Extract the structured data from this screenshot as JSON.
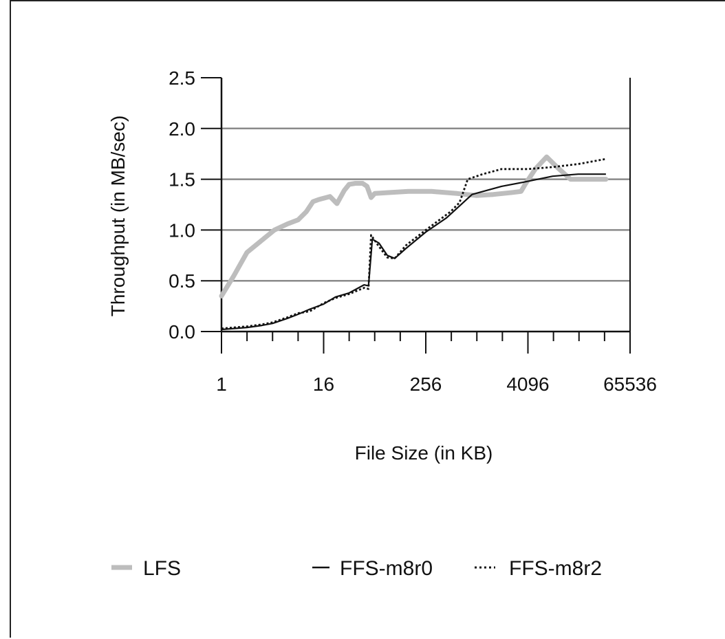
{
  "chart_data": {
    "type": "line",
    "xlabel": "File Size (in KB)",
    "ylabel": "Throughput (in MB/sec)",
    "x_scale": "log2",
    "xlim": [
      1,
      65536
    ],
    "ylim": [
      0,
      2.5
    ],
    "x_ticks": [
      1,
      16,
      256,
      4096,
      65536
    ],
    "x_tick_labels": [
      "1",
      "16",
      "256",
      "4096",
      "65536"
    ],
    "y_ticks": [
      0.0,
      0.5,
      1.0,
      1.5,
      2.0,
      2.5
    ],
    "y_tick_labels": [
      "0.0",
      "0.5",
      "1.0",
      "1.5",
      "2.0",
      "2.5"
    ],
    "grid": "horizontal",
    "legend_position": "bottom",
    "series": [
      {
        "name": "LFS",
        "color": "#bdbdbd",
        "style": "thick",
        "points": [
          [
            1,
            0.35
          ],
          [
            1.4,
            0.55
          ],
          [
            2,
            0.78
          ],
          [
            3,
            0.9
          ],
          [
            4.2,
            1.0
          ],
          [
            6,
            1.06
          ],
          [
            8,
            1.1
          ],
          [
            10,
            1.18
          ],
          [
            12,
            1.28
          ],
          [
            14,
            1.3
          ],
          [
            19,
            1.33
          ],
          [
            23,
            1.26
          ],
          [
            28,
            1.39
          ],
          [
            32,
            1.45
          ],
          [
            38,
            1.46
          ],
          [
            46,
            1.46
          ],
          [
            52,
            1.43
          ],
          [
            58,
            1.32
          ],
          [
            64,
            1.36
          ],
          [
            100,
            1.37
          ],
          [
            160,
            1.38
          ],
          [
            300,
            1.38
          ],
          [
            600,
            1.36
          ],
          [
            1000,
            1.34
          ],
          [
            1600,
            1.35
          ],
          [
            2700,
            1.37
          ],
          [
            3400,
            1.38
          ],
          [
            3800,
            1.45
          ],
          [
            5000,
            1.6
          ],
          [
            6800,
            1.72
          ],
          [
            9000,
            1.62
          ],
          [
            13000,
            1.5
          ],
          [
            20000,
            1.5
          ],
          [
            34000,
            1.5
          ]
        ]
      },
      {
        "name": "FFS-m8r0",
        "color": "#111111",
        "style": "solid",
        "points": [
          [
            1,
            0.02
          ],
          [
            2,
            0.04
          ],
          [
            3,
            0.06
          ],
          [
            4,
            0.08
          ],
          [
            6,
            0.13
          ],
          [
            8,
            0.17
          ],
          [
            11,
            0.22
          ],
          [
            16,
            0.27
          ],
          [
            22,
            0.34
          ],
          [
            32,
            0.38
          ],
          [
            48,
            0.46
          ],
          [
            54,
            0.45
          ],
          [
            60,
            0.91
          ],
          [
            72,
            0.87
          ],
          [
            90,
            0.75
          ],
          [
            110,
            0.72
          ],
          [
            150,
            0.82
          ],
          [
            256,
            0.98
          ],
          [
            450,
            1.12
          ],
          [
            900,
            1.35
          ],
          [
            2000,
            1.43
          ],
          [
            4096,
            1.48
          ],
          [
            8000,
            1.53
          ],
          [
            16000,
            1.55
          ],
          [
            34000,
            1.55
          ]
        ]
      },
      {
        "name": "FFS-m8r2",
        "color": "#111111",
        "style": "dotted",
        "points": [
          [
            1,
            0.03
          ],
          [
            2,
            0.05
          ],
          [
            3,
            0.07
          ],
          [
            4,
            0.09
          ],
          [
            6,
            0.14
          ],
          [
            8,
            0.18
          ],
          [
            11,
            0.2
          ],
          [
            16,
            0.28
          ],
          [
            22,
            0.33
          ],
          [
            32,
            0.37
          ],
          [
            48,
            0.43
          ],
          [
            54,
            0.42
          ],
          [
            58,
            0.95
          ],
          [
            70,
            0.85
          ],
          [
            90,
            0.73
          ],
          [
            110,
            0.72
          ],
          [
            150,
            0.85
          ],
          [
            256,
            1.0
          ],
          [
            500,
            1.18
          ],
          [
            640,
            1.27
          ],
          [
            800,
            1.5
          ],
          [
            1200,
            1.55
          ],
          [
            2000,
            1.6
          ],
          [
            4096,
            1.6
          ],
          [
            8000,
            1.62
          ],
          [
            16000,
            1.65
          ],
          [
            34000,
            1.7
          ]
        ]
      }
    ]
  }
}
